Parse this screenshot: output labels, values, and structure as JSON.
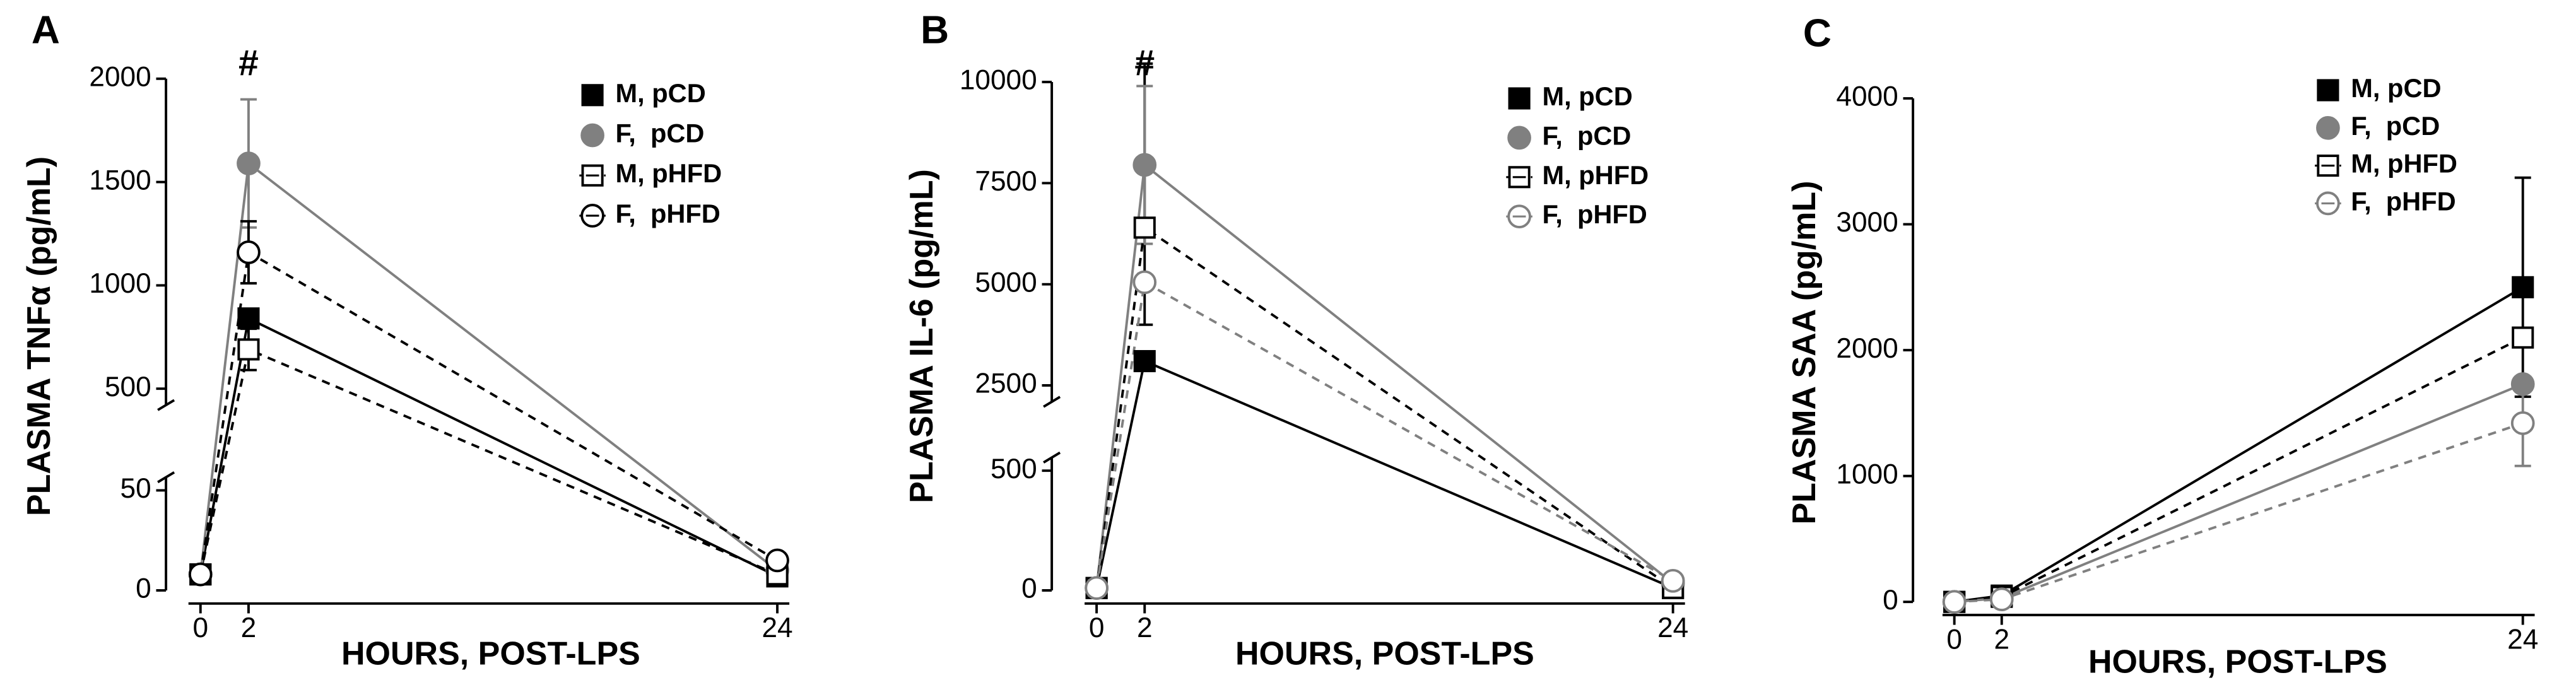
{
  "chart_data": [
    {
      "type": "line",
      "panel_label": "A",
      "y_label": "PLASMA TNFα (pg/mL)",
      "x_label": "HOURS, POST-LPS",
      "x": [
        0,
        2,
        24
      ],
      "xlim": [
        -0.5,
        24.5
      ],
      "xticks": [
        0,
        2,
        24
      ],
      "y_segments": [
        {
          "ylim": [
            0,
            50
          ],
          "yticks": [
            0,
            50
          ]
        },
        {
          "ylim": [
            500,
            2000
          ],
          "yticks": [
            500,
            1000,
            1500,
            2000
          ]
        }
      ],
      "annotations": [
        {
          "text": "#",
          "x": 2
        }
      ],
      "series": [
        {
          "name": "M, pCD",
          "color": "#000000",
          "marker": "square",
          "filled": true,
          "dashed": false,
          "values": [
            8,
            840,
            7
          ],
          "errors": [
            null,
            null,
            null
          ]
        },
        {
          "name": "F,  pCD",
          "color": "#808080",
          "marker": "circle",
          "filled": true,
          "dashed": false,
          "values": [
            8,
            1590,
            10
          ],
          "errors": [
            null,
            310,
            null
          ]
        },
        {
          "name": "M, pHFD",
          "color": "#000000",
          "marker": "square",
          "filled": false,
          "dashed": true,
          "values": [
            8,
            690,
            8
          ],
          "errors": [
            null,
            100,
            null
          ]
        },
        {
          "name": "F,  pHFD",
          "color": "#000000",
          "marker": "circle",
          "filled": false,
          "dashed": true,
          "values": [
            8,
            1160,
            15
          ],
          "errors": [
            null,
            150,
            null
          ]
        }
      ]
    },
    {
      "type": "line",
      "panel_label": "B",
      "y_label": "PLASMA IL-6 (pg/mL)",
      "x_label": "HOURS, POST-LPS",
      "x": [
        0,
        2,
        24
      ],
      "xlim": [
        -0.5,
        24.5
      ],
      "xticks": [
        0,
        2,
        24
      ],
      "y_segments": [
        {
          "ylim": [
            0,
            500
          ],
          "yticks": [
            0,
            500
          ]
        },
        {
          "ylim": [
            2500,
            10000
          ],
          "yticks": [
            2500,
            5000,
            7500,
            10000
          ]
        }
      ],
      "annotations": [
        {
          "text": "#",
          "x": 2
        }
      ],
      "series": [
        {
          "name": "M, pCD",
          "color": "#000000",
          "marker": "square",
          "filled": true,
          "dashed": false,
          "values": [
            10,
            3100,
            10
          ],
          "errors": [
            null,
            900,
            null
          ]
        },
        {
          "name": "F,  pCD",
          "color": "#808080",
          "marker": "circle",
          "filled": true,
          "dashed": false,
          "values": [
            10,
            7950,
            30
          ],
          "errors": [
            null,
            1950,
            null
          ]
        },
        {
          "name": "M, pHFD",
          "color": "#000000",
          "marker": "square",
          "filled": false,
          "dashed": true,
          "values": [
            10,
            6400,
            10
          ],
          "errors": [
            null,
            null,
            null
          ]
        },
        {
          "name": "F,  pHFD",
          "color": "#808080",
          "marker": "circle",
          "filled": false,
          "dashed": true,
          "values": [
            10,
            5050,
            40
          ],
          "errors": [
            null,
            null,
            null
          ]
        }
      ]
    },
    {
      "type": "line",
      "panel_label": "C",
      "y_label": "PLASMA SAA (pg/mL)",
      "x_label": "HOURS, POST-LPS",
      "x": [
        0,
        2,
        24
      ],
      "xlim": [
        -0.5,
        24.5
      ],
      "xticks": [
        0,
        2,
        24
      ],
      "y_segments": [
        {
          "ylim": [
            0,
            4000
          ],
          "yticks": [
            0,
            1000,
            2000,
            3000,
            4000
          ]
        }
      ],
      "series": [
        {
          "name": "M, pCD",
          "color": "#000000",
          "marker": "square",
          "filled": true,
          "dashed": false,
          "values": [
            0,
            50,
            2500
          ],
          "errors": [
            null,
            null,
            870
          ]
        },
        {
          "name": "F,  pCD",
          "color": "#808080",
          "marker": "circle",
          "filled": true,
          "dashed": false,
          "values": [
            0,
            30,
            1730
          ],
          "errors": [
            null,
            null,
            null
          ]
        },
        {
          "name": "M, pHFD",
          "color": "#000000",
          "marker": "square",
          "filled": false,
          "dashed": true,
          "values": [
            0,
            40,
            2100
          ],
          "errors": [
            null,
            null,
            null
          ]
        },
        {
          "name": "F,  pHFD",
          "color": "#808080",
          "marker": "circle",
          "filled": false,
          "dashed": true,
          "values": [
            0,
            20,
            1420
          ],
          "errors": [
            null,
            null,
            340
          ]
        }
      ]
    }
  ]
}
